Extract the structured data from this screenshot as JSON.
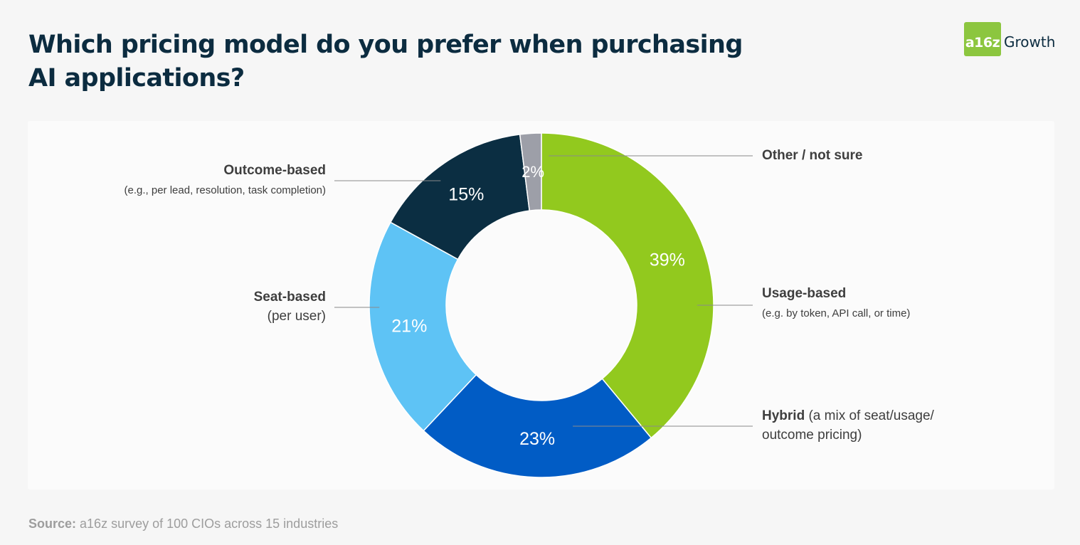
{
  "header": {
    "title": "Which pricing model do you prefer when purchasing AI applications?",
    "logo_mark": "a16z",
    "logo_word": "Growth",
    "logo_color": "#8cc63f"
  },
  "source": {
    "prefix": "Source:",
    "text": " a16z survey of 100 CIOs across 15 industries"
  },
  "labels": {
    "other": "Other / not sure",
    "usage": "Usage-based",
    "usage_sub": "(e.g. by token, API call, or time)",
    "hybrid": "Hybrid",
    "hybrid_rest_line1": " (a mix of seat/usage/",
    "hybrid_line2": "outcome pricing)",
    "seat": "Seat-based",
    "seat_sub": "(per user)",
    "outcome": "Outcome-based",
    "outcome_sub": "(e.g., per lead, resolution, task completion)"
  },
  "chart_data": {
    "type": "pie",
    "title": "Which pricing model do you prefer when purchasing AI applications?",
    "unit": "%",
    "slices": [
      {
        "key": "usage",
        "label": "Usage-based",
        "value": 39,
        "display": "39%",
        "color": "#92c91e"
      },
      {
        "key": "hybrid",
        "label": "Hybrid",
        "value": 23,
        "display": "23%",
        "color": "#015cc5"
      },
      {
        "key": "seat",
        "label": "Seat-based",
        "value": 21,
        "display": "21%",
        "color": "#5ec3f5"
      },
      {
        "key": "outcome",
        "label": "Outcome-based",
        "value": 15,
        "display": "15%",
        "color": "#0b2e42"
      },
      {
        "key": "other",
        "label": "Other / not sure",
        "value": 2,
        "display": "2%",
        "color": "#9d9fa8"
      }
    ]
  }
}
